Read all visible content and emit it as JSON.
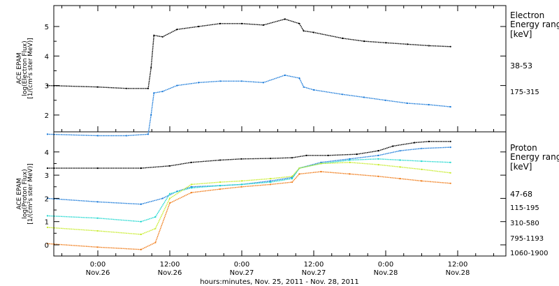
{
  "chart_data": [
    {
      "type": "line",
      "panel": "electron",
      "ylabel_lines": [
        "ACE EPAM",
        "log(Electron Flux)",
        "[1/(cm²s ster MeV)]"
      ],
      "y_ticks": [
        "2",
        "3",
        "4",
        "5"
      ],
      "ylim": [
        1.2,
        5.9
      ],
      "legend_title_lines": [
        "Electron",
        "Energy range",
        "[keV]"
      ],
      "series": [
        {
          "name": "38-53",
          "color": "#000000",
          "x": [
            -0.35,
            0.0,
            0.2,
            0.35,
            0.37,
            0.39,
            0.45,
            0.55,
            0.7,
            0.85,
            1.0,
            1.15,
            1.3,
            1.4,
            1.43,
            1.5,
            1.7,
            1.85,
            2.0,
            2.15,
            2.3,
            2.45
          ],
          "values": [
            3.0,
            2.95,
            2.9,
            2.9,
            3.6,
            4.7,
            4.65,
            4.9,
            5.0,
            5.1,
            5.1,
            5.05,
            5.25,
            5.1,
            4.85,
            4.8,
            4.6,
            4.5,
            4.45,
            4.4,
            4.35,
            4.32
          ]
        },
        {
          "name": "175-315",
          "color": "#1a7ad9",
          "x": [
            -0.35,
            0.0,
            0.2,
            0.35,
            0.37,
            0.39,
            0.45,
            0.55,
            0.7,
            0.85,
            1.0,
            1.15,
            1.3,
            1.4,
            1.43,
            1.5,
            1.7,
            1.85,
            2.0,
            2.15,
            2.3,
            2.45
          ],
          "values": [
            1.35,
            1.3,
            1.3,
            1.35,
            2.0,
            2.75,
            2.8,
            3.0,
            3.1,
            3.15,
            3.15,
            3.1,
            3.35,
            3.25,
            2.95,
            2.85,
            2.7,
            2.6,
            2.5,
            2.4,
            2.35,
            2.28
          ]
        }
      ]
    },
    {
      "type": "line",
      "panel": "proton",
      "ylabel_lines": [
        "ACE EPAM",
        "log(Proton Flux)",
        "[1/(cm²s ster MeV)]"
      ],
      "y_ticks": [
        "0",
        "1",
        "2",
        "3",
        "4"
      ],
      "ylim": [
        -0.5,
        4.75
      ],
      "legend_title_lines": [
        "Proton",
        "Energy range",
        "[keV]"
      ],
      "series": [
        {
          "name": "47-68",
          "color": "#000000",
          "x": [
            -0.35,
            0.0,
            0.3,
            0.5,
            0.65,
            0.85,
            1.0,
            1.2,
            1.35,
            1.45,
            1.6,
            1.8,
            1.95,
            2.05,
            2.2,
            2.3,
            2.45
          ],
          "values": [
            3.3,
            3.3,
            3.3,
            3.4,
            3.55,
            3.65,
            3.7,
            3.72,
            3.75,
            3.85,
            3.85,
            3.9,
            4.05,
            4.25,
            4.4,
            4.45,
            4.45
          ]
        },
        {
          "name": "115-195",
          "color": "#1a7ad9",
          "x": [
            -0.35,
            0.0,
            0.3,
            0.45,
            0.55,
            0.65,
            0.85,
            1.0,
            1.2,
            1.35,
            1.4,
            1.55,
            1.75,
            1.95,
            2.1,
            2.25,
            2.45
          ],
          "values": [
            2.0,
            1.85,
            1.75,
            2.0,
            2.3,
            2.5,
            2.55,
            2.6,
            2.75,
            2.9,
            3.3,
            3.55,
            3.7,
            3.85,
            4.05,
            4.15,
            4.2
          ]
        },
        {
          "name": "310-580",
          "color": "#22d8d0",
          "x": [
            -0.35,
            0.0,
            0.3,
            0.4,
            0.5,
            0.65,
            0.85,
            1.0,
            1.2,
            1.35,
            1.4,
            1.55,
            1.75,
            1.95,
            2.1,
            2.25,
            2.45
          ],
          "values": [
            1.25,
            1.15,
            1.0,
            1.2,
            2.2,
            2.45,
            2.55,
            2.6,
            2.7,
            2.85,
            3.3,
            3.5,
            3.65,
            3.7,
            3.65,
            3.6,
            3.55
          ]
        },
        {
          "name": "795-1193",
          "color": "#c8ec2e",
          "x": [
            -0.35,
            0.0,
            0.3,
            0.4,
            0.5,
            0.65,
            0.85,
            1.0,
            1.2,
            1.35,
            1.4,
            1.55,
            1.75,
            1.95,
            2.1,
            2.25,
            2.45
          ],
          "values": [
            0.75,
            0.6,
            0.45,
            0.7,
            2.0,
            2.6,
            2.7,
            2.75,
            2.85,
            2.95,
            3.3,
            3.5,
            3.55,
            3.45,
            3.35,
            3.25,
            3.1
          ]
        },
        {
          "name": "1060-1900",
          "color": "#f07c1a",
          "x": [
            -0.35,
            0.0,
            0.3,
            0.4,
            0.5,
            0.65,
            0.85,
            1.0,
            1.2,
            1.35,
            1.4,
            1.55,
            1.75,
            1.95,
            2.1,
            2.25,
            2.45
          ],
          "values": [
            0.05,
            -0.1,
            -0.2,
            0.1,
            1.8,
            2.25,
            2.4,
            2.5,
            2.6,
            2.7,
            3.05,
            3.15,
            3.05,
            2.95,
            2.85,
            2.75,
            2.65
          ]
        }
      ]
    }
  ],
  "x_axis": {
    "ticks": [
      {
        "time": "0:00",
        "date": "Nov.26"
      },
      {
        "time": "12:00",
        "date": "Nov.26"
      },
      {
        "time": "0:00",
        "date": "Nov.27"
      },
      {
        "time": "12:00",
        "date": "Nov.27"
      },
      {
        "time": "0:00",
        "date": "Nov.28"
      },
      {
        "time": "12:00",
        "date": "Nov.28"
      }
    ],
    "xlabel": "hours:minutes, Nov. 25, 2011 - Nov. 28, 2011"
  },
  "colors": {
    "frame": "#000000",
    "background": "#ffffff"
  }
}
